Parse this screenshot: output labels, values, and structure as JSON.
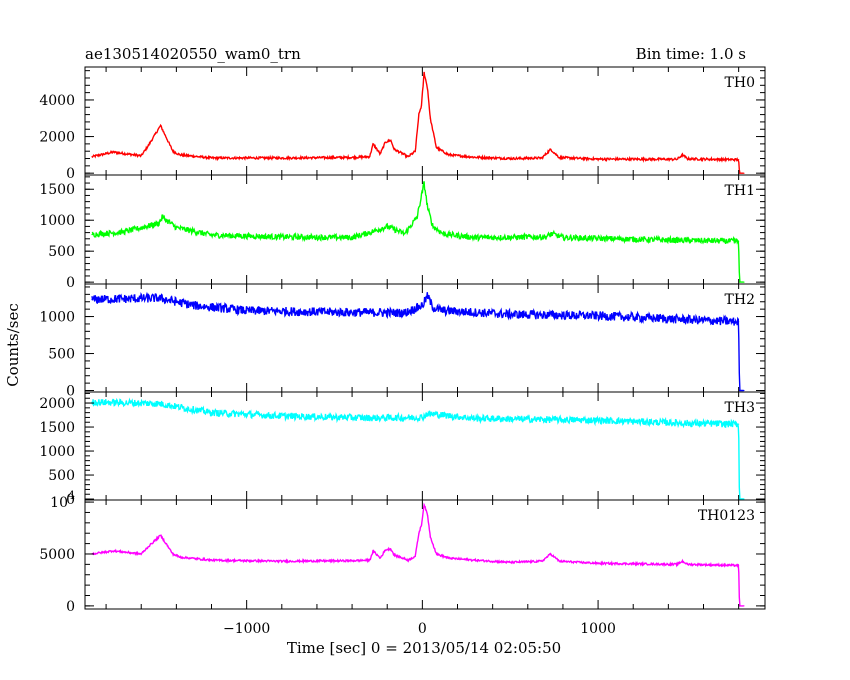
{
  "header": {
    "title": "ae130514020550_wam0_trn",
    "bin_time": "Bin time: 1.0 s"
  },
  "ylabel": "Counts/sec",
  "xlabel": "Time [sec] 0 = 2013/05/14 02:05:50",
  "chart_data": [
    {
      "type": "line",
      "title": "TH0",
      "color": "#ff0000",
      "xlim": [
        -1920,
        1950
      ],
      "ylim": [
        -100,
        5800
      ],
      "yticks": [
        {
          "v": 0,
          "label": "0"
        },
        {
          "v": 2000,
          "label": "2000"
        },
        {
          "v": 4000,
          "label": "4000"
        }
      ],
      "noise": 60,
      "x": [
        -1880,
        -1760,
        -1600,
        -1560,
        -1490,
        -1420,
        -1380,
        -1200,
        -800,
        -400,
        -300,
        -280,
        -240,
        -210,
        -180,
        -160,
        -80,
        -40,
        -20,
        -5,
        10,
        30,
        45,
        80,
        150,
        300,
        500,
        680,
        730,
        780,
        1000,
        1450,
        1480,
        1510,
        1780,
        1800,
        1805,
        1830
      ],
      "values": [
        900,
        1150,
        950,
        1500,
        2600,
        1200,
        1000,
        830,
        830,
        860,
        900,
        1600,
        1050,
        1700,
        1800,
        1300,
        900,
        1200,
        3200,
        3700,
        5500,
        4600,
        3000,
        1400,
        1000,
        870,
        800,
        830,
        1300,
        850,
        770,
        760,
        1000,
        780,
        740,
        740,
        0,
        0
      ]
    },
    {
      "type": "line",
      "title": "TH1",
      "color": "#00ff00",
      "xlim": [
        -1920,
        1950
      ],
      "ylim": [
        -30,
        1730
      ],
      "yticks": [
        {
          "v": 0,
          "label": "0"
        },
        {
          "v": 500,
          "label": "500"
        },
        {
          "v": 1000,
          "label": "1000"
        },
        {
          "v": 1500,
          "label": "1500"
        }
      ],
      "noise": 45,
      "x": [
        -1880,
        -1700,
        -1500,
        -1480,
        -1400,
        -1200,
        -800,
        -400,
        -300,
        -200,
        -100,
        -30,
        10,
        30,
        60,
        120,
        300,
        700,
        740,
        800,
        1400,
        1780,
        1800,
        1805,
        1830
      ],
      "values": [
        770,
        810,
        950,
        1050,
        880,
        760,
        730,
        720,
        800,
        900,
        780,
        1050,
        1600,
        1200,
        900,
        780,
        720,
        730,
        780,
        720,
        680,
        660,
        660,
        0,
        0
      ]
    },
    {
      "type": "line",
      "title": "TH2",
      "color": "#0000ff",
      "xlim": [
        -1920,
        1950
      ],
      "ylim": [
        -20,
        1440
      ],
      "yticks": [
        {
          "v": 0,
          "label": "0"
        },
        {
          "v": 500,
          "label": "500"
        },
        {
          "v": 1000,
          "label": "1000"
        }
      ],
      "noise": 60,
      "x": [
        -1880,
        -1500,
        -1300,
        -1000,
        -500,
        -100,
        0,
        30,
        60,
        120,
        500,
        1000,
        1500,
        1780,
        1800,
        1805,
        1830
      ],
      "values": [
        1230,
        1250,
        1150,
        1080,
        1060,
        1050,
        1150,
        1280,
        1120,
        1080,
        1030,
        1010,
        960,
        930,
        930,
        0,
        0
      ]
    },
    {
      "type": "line",
      "title": "TH3",
      "color": "#00ffff",
      "xlim": [
        -1920,
        1950
      ],
      "ylim": [
        -20,
        2230
      ],
      "yticks": [
        {
          "v": 0,
          "label": "0"
        },
        {
          "v": 500,
          "label": "500"
        },
        {
          "v": 1000,
          "label": "1000"
        },
        {
          "v": 1500,
          "label": "1500"
        },
        {
          "v": 2000,
          "label": "2000"
        }
      ],
      "noise": 70,
      "x": [
        -1880,
        -1500,
        -1200,
        -800,
        -300,
        0,
        30,
        300,
        1000,
        1500,
        1780,
        1800,
        1805,
        1830
      ],
      "values": [
        2020,
        1990,
        1800,
        1730,
        1690,
        1700,
        1780,
        1680,
        1640,
        1580,
        1560,
        1560,
        0,
        0
      ]
    },
    {
      "type": "line",
      "title": "TH0123",
      "color": "#ff00ff",
      "xlim": [
        -1920,
        1950
      ],
      "ylim": [
        -300,
        10200
      ],
      "yticks": [
        {
          "v": 0,
          "label": "0"
        },
        {
          "v": 5000,
          "label": "5000"
        }
      ],
      "exp_tick": {
        "v": 10000,
        "label": "10",
        "exp": "4"
      },
      "noise": 90,
      "x": [
        -1880,
        -1760,
        -1600,
        -1560,
        -1490,
        -1420,
        -1380,
        -1200,
        -800,
        -400,
        -300,
        -280,
        -240,
        -210,
        -180,
        -160,
        -80,
        -40,
        -20,
        -5,
        10,
        30,
        45,
        80,
        150,
        300,
        500,
        680,
        730,
        780,
        1000,
        1450,
        1480,
        1510,
        1780,
        1800,
        1805,
        1830
      ],
      "values": [
        5000,
        5300,
        5000,
        5700,
        6800,
        5000,
        4700,
        4400,
        4300,
        4350,
        4400,
        5300,
        4600,
        5400,
        5500,
        4900,
        4400,
        4800,
        7000,
        7800,
        9800,
        8700,
        6700,
        5000,
        4600,
        4400,
        4200,
        4300,
        5000,
        4300,
        4100,
        4000,
        4300,
        4000,
        3900,
        3900,
        0,
        0
      ]
    }
  ],
  "xaxis": {
    "ticks": [
      {
        "v": -1000,
        "label": "−1000"
      },
      {
        "v": 0,
        "label": "0"
      },
      {
        "v": 1000,
        "label": "1000"
      }
    ]
  }
}
